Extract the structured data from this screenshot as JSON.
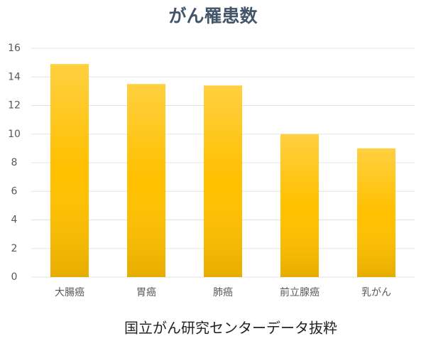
{
  "chart_data": {
    "type": "bar",
    "title": "がん罹患数",
    "categories": [
      "大腸癌",
      "胃癌",
      "肺癌",
      "前立腺癌",
      "乳がん"
    ],
    "values": [
      14.9,
      13.5,
      13.4,
      10,
      9
    ],
    "color": "#ffc000",
    "ylim": [
      0,
      16
    ],
    "yticks": [
      0,
      2,
      4,
      6,
      8,
      10,
      12,
      14,
      16
    ],
    "grid": true,
    "annotation": "国立がん研究センターデータ抜粋"
  }
}
